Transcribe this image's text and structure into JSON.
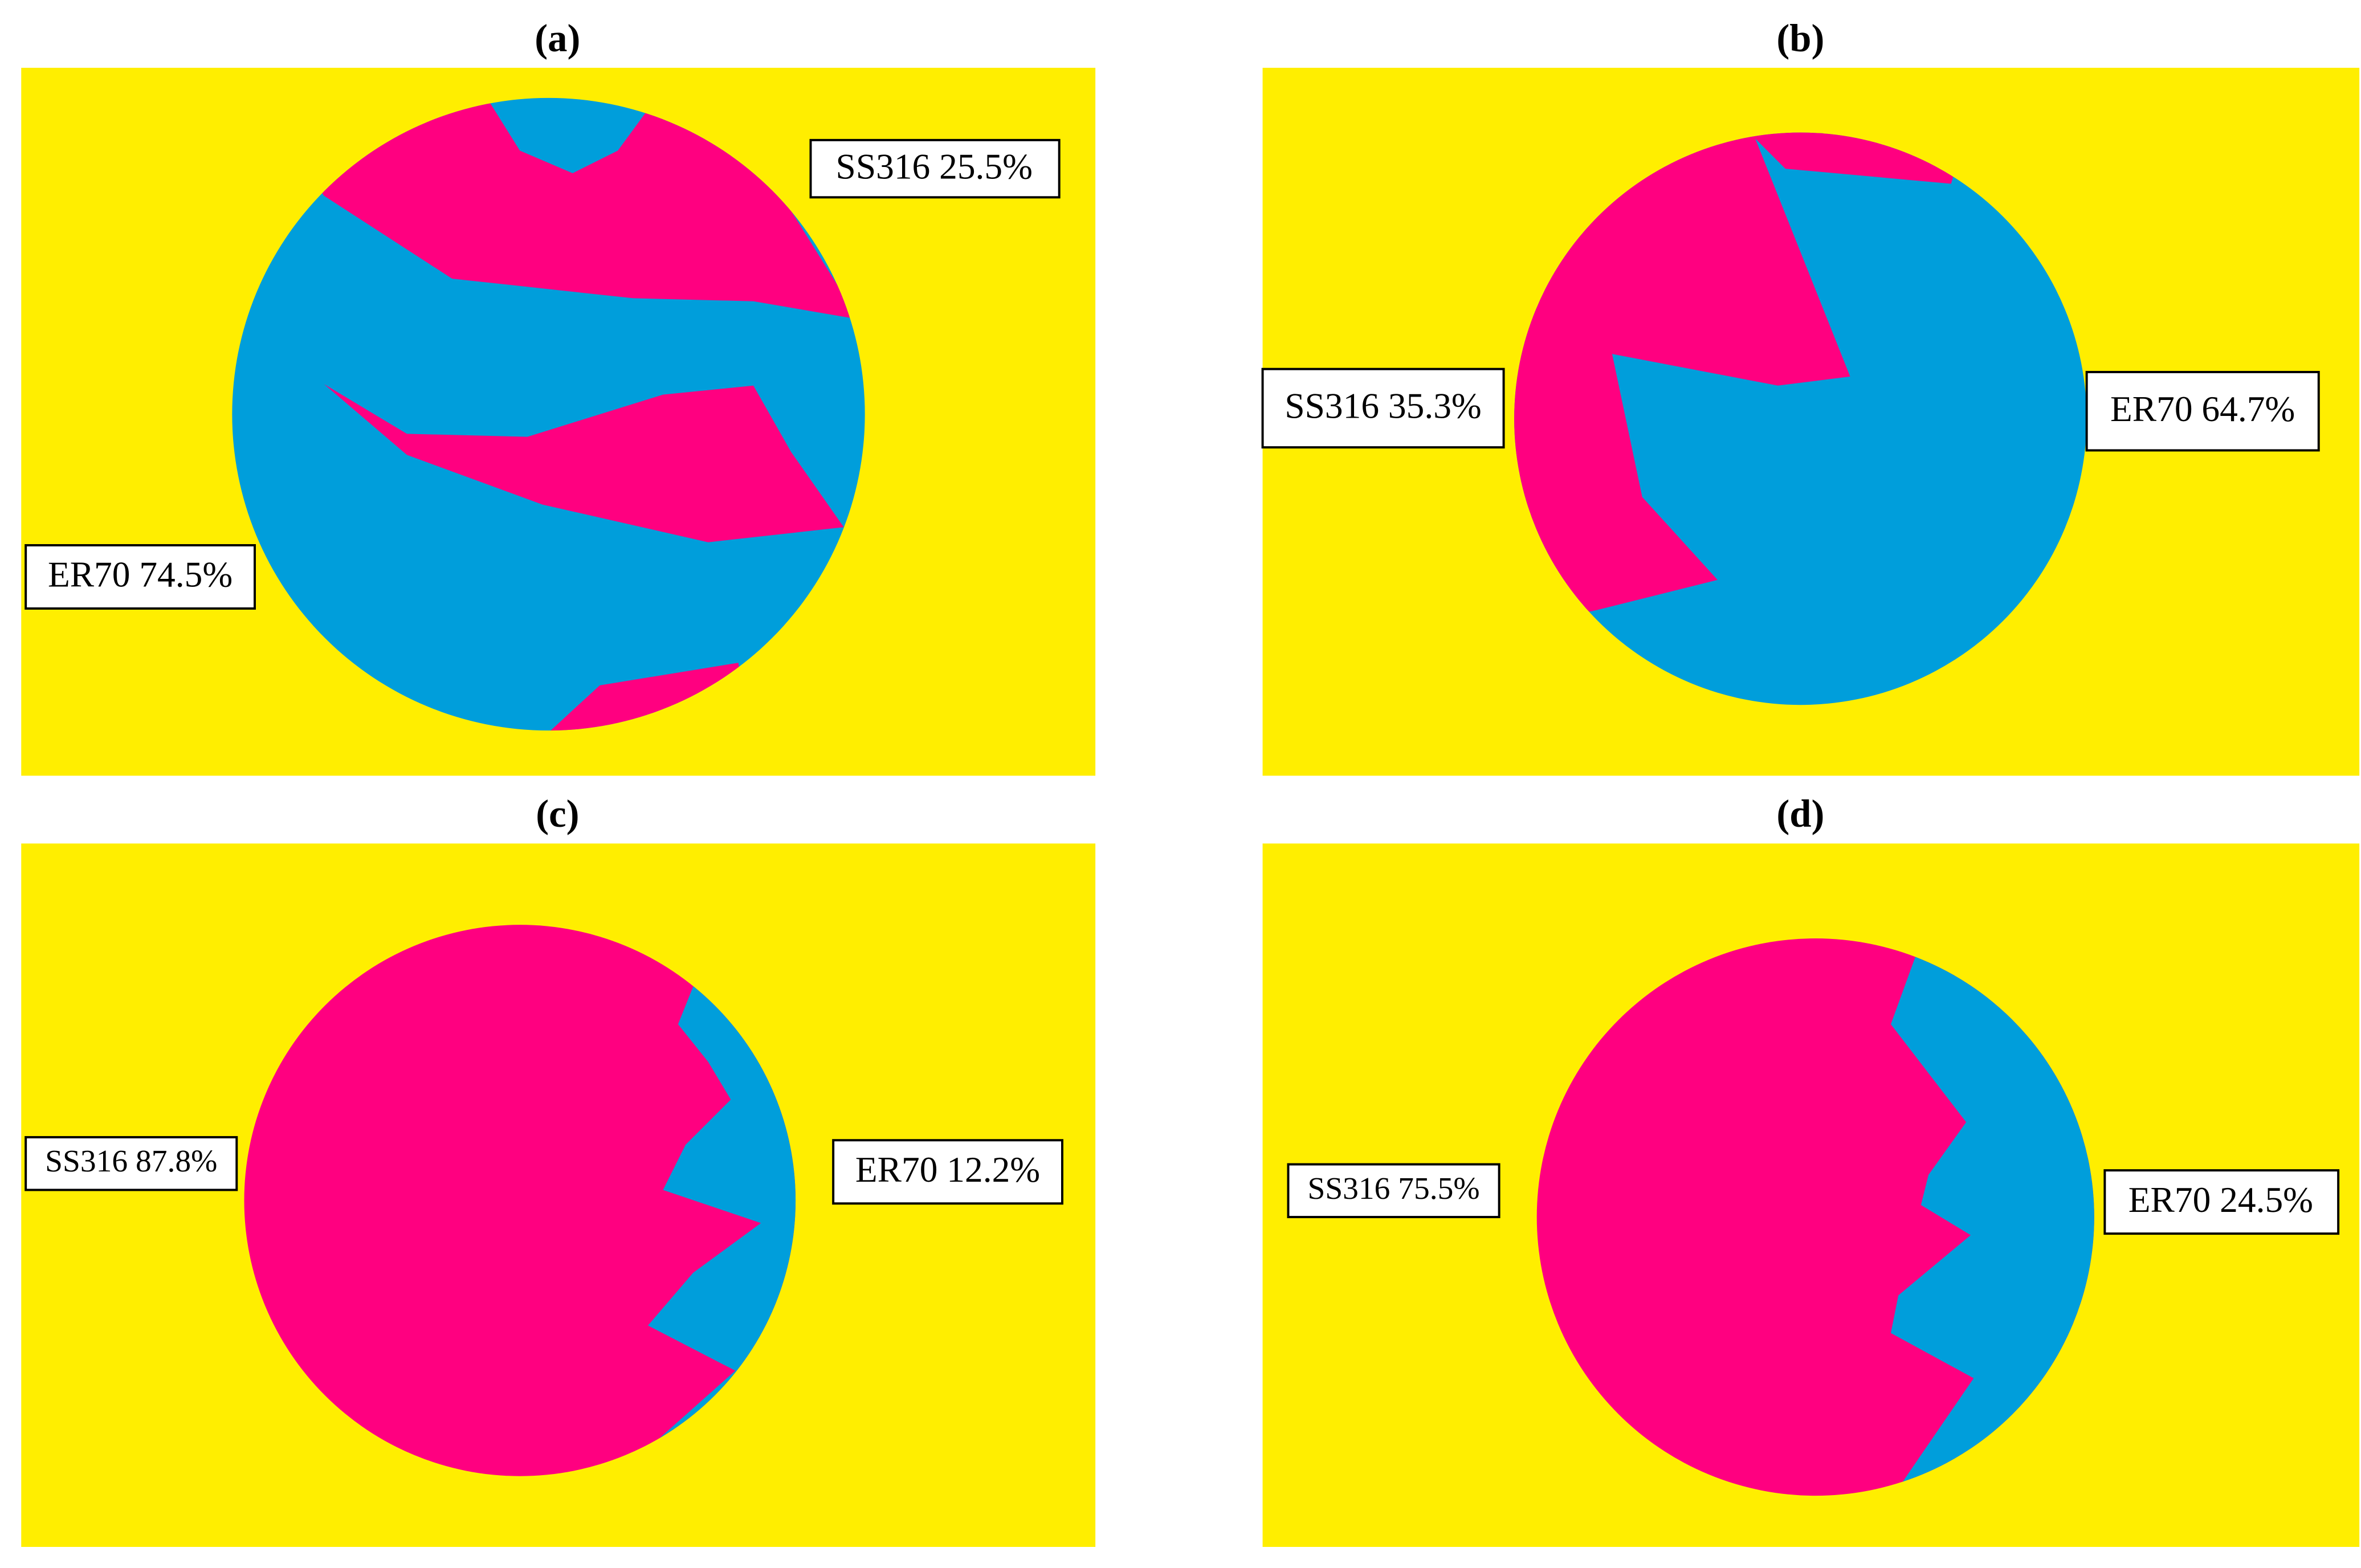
{
  "panels": [
    {
      "label": "(a)",
      "annotations": [
        "SS316 25.5%",
        "ER70 74.5%"
      ]
    },
    {
      "label": "(b)",
      "annotations": [
        "SS316 35.3%",
        "ER70 64.7%"
      ]
    },
    {
      "label": "(c)",
      "annotations": [
        "SS316 87.8%",
        "ER70 12.2%"
      ]
    },
    {
      "label": "(d)",
      "annotations": [
        "SS316 75.5%",
        "ER70 24.5%"
      ]
    }
  ]
}
